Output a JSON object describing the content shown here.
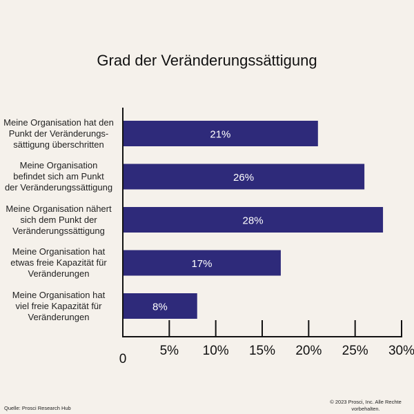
{
  "chart_data": {
    "type": "bar",
    "orientation": "horizontal",
    "title": "Grad der Veränderungssättigung",
    "categories": [
      [
        "Meine Organisation hat den",
        "Punkt der Veränderungs-",
        "sättigung überschritten"
      ],
      [
        "Meine Organisation",
        "befindet sich am Punkt",
        "der Veränderungssättigung"
      ],
      [
        "Meine Organisation nähert",
        "sich dem Punkt der",
        "Veränderungssättigung"
      ],
      [
        "Meine Organisation hat",
        "etwas freie Kapazität für",
        "Veränderungen"
      ],
      [
        "Meine Organisation hat",
        "viel freie Kapazität für",
        "Veränderungen"
      ]
    ],
    "values": [
      21,
      26,
      28,
      17,
      8
    ],
    "data_labels": [
      "21%",
      "26%",
      "28%",
      "17%",
      "8%"
    ],
    "xlim": [
      0,
      30
    ],
    "ticks": [
      0,
      5,
      10,
      15,
      20,
      25,
      30
    ],
    "tick_labels": [
      "0",
      "5%",
      "10%",
      "15%",
      "20%",
      "25%",
      "30%"
    ],
    "xlabel": "",
    "ylabel": "",
    "grid": false,
    "bar_color": "#2e2a7a",
    "label_color": "#ffffff"
  },
  "footer": {
    "source": "Quelle: Prosci Research Hub",
    "copyright_line1": "© 2023 Prosci, Inc. Alle Rechte",
    "copyright_line2": "vorbehalten."
  }
}
